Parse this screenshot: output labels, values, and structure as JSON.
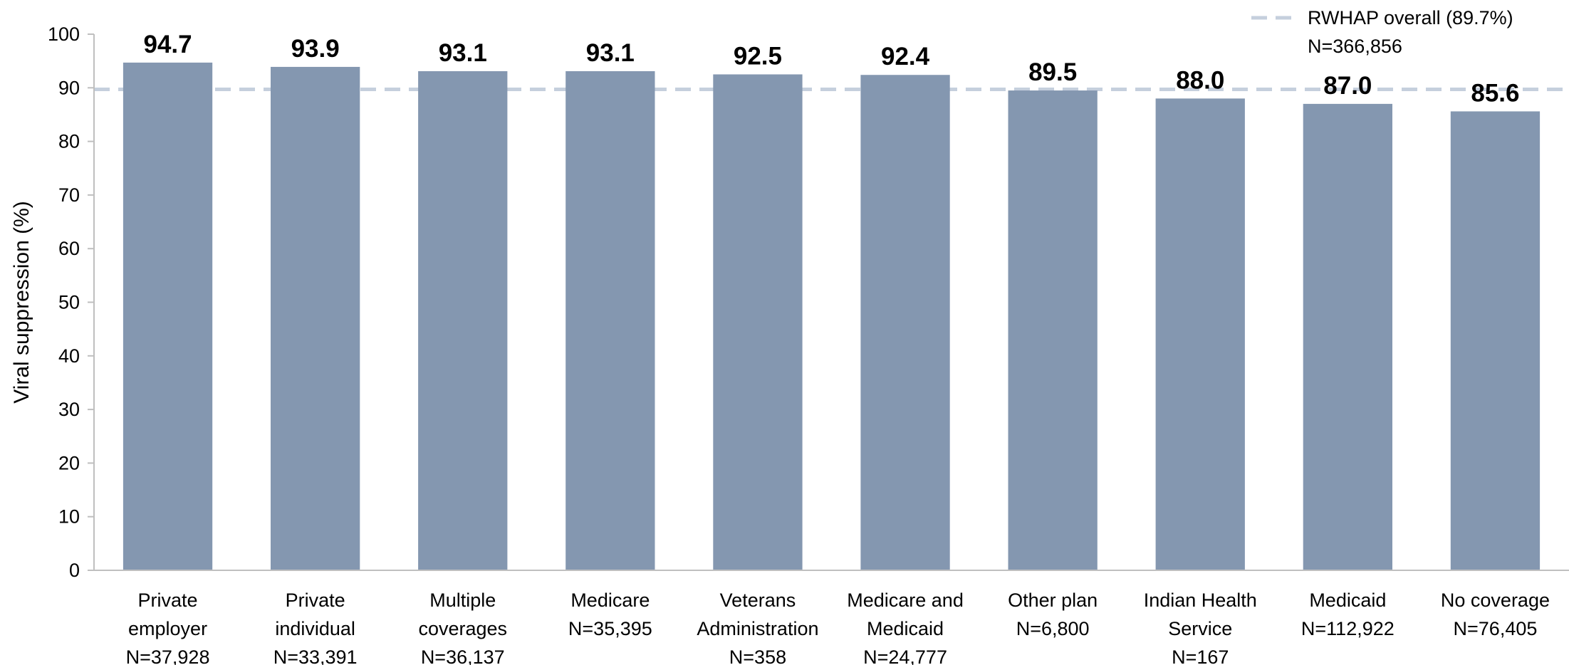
{
  "chart_data": {
    "type": "bar",
    "ylabel": "Viral suppression (%)",
    "xlabel": "",
    "ylim": [
      0,
      100
    ],
    "yticks": [
      0,
      10,
      20,
      30,
      40,
      50,
      60,
      70,
      80,
      90,
      100
    ],
    "grid": false,
    "categories": [
      {
        "lines": [
          "Private",
          "employer",
          "N=37,928"
        ]
      },
      {
        "lines": [
          "Private",
          "individual",
          "N=33,391"
        ]
      },
      {
        "lines": [
          "Multiple",
          "coverages",
          "N=36,137"
        ]
      },
      {
        "lines": [
          "Medicare",
          "N=35,395"
        ]
      },
      {
        "lines": [
          "Veterans",
          "Administration",
          "N=358"
        ]
      },
      {
        "lines": [
          "Medicare and",
          "Medicaid",
          "N=24,777"
        ]
      },
      {
        "lines": [
          "Other plan",
          "N=6,800"
        ]
      },
      {
        "lines": [
          "Indian Health",
          "Service",
          "N=167"
        ]
      },
      {
        "lines": [
          "Medicaid",
          "N=112,922"
        ]
      },
      {
        "lines": [
          "No coverage",
          "N=76,405"
        ]
      }
    ],
    "values": [
      94.7,
      93.9,
      93.1,
      93.1,
      92.5,
      92.4,
      89.5,
      88.0,
      87.0,
      85.6
    ],
    "value_labels": [
      "94.7",
      "93.9",
      "93.1",
      "93.1",
      "92.5",
      "92.4",
      "89.5",
      "88.0",
      "87.0",
      "85.6"
    ],
    "bar_color": "#8497b0",
    "reference_line": {
      "value": 89.7,
      "style": "dashed",
      "color": "#c5cfdd",
      "legend_lines": [
        "RWHAP overall (89.7%)",
        "N=366,856"
      ]
    },
    "legend_position": "top-right"
  }
}
